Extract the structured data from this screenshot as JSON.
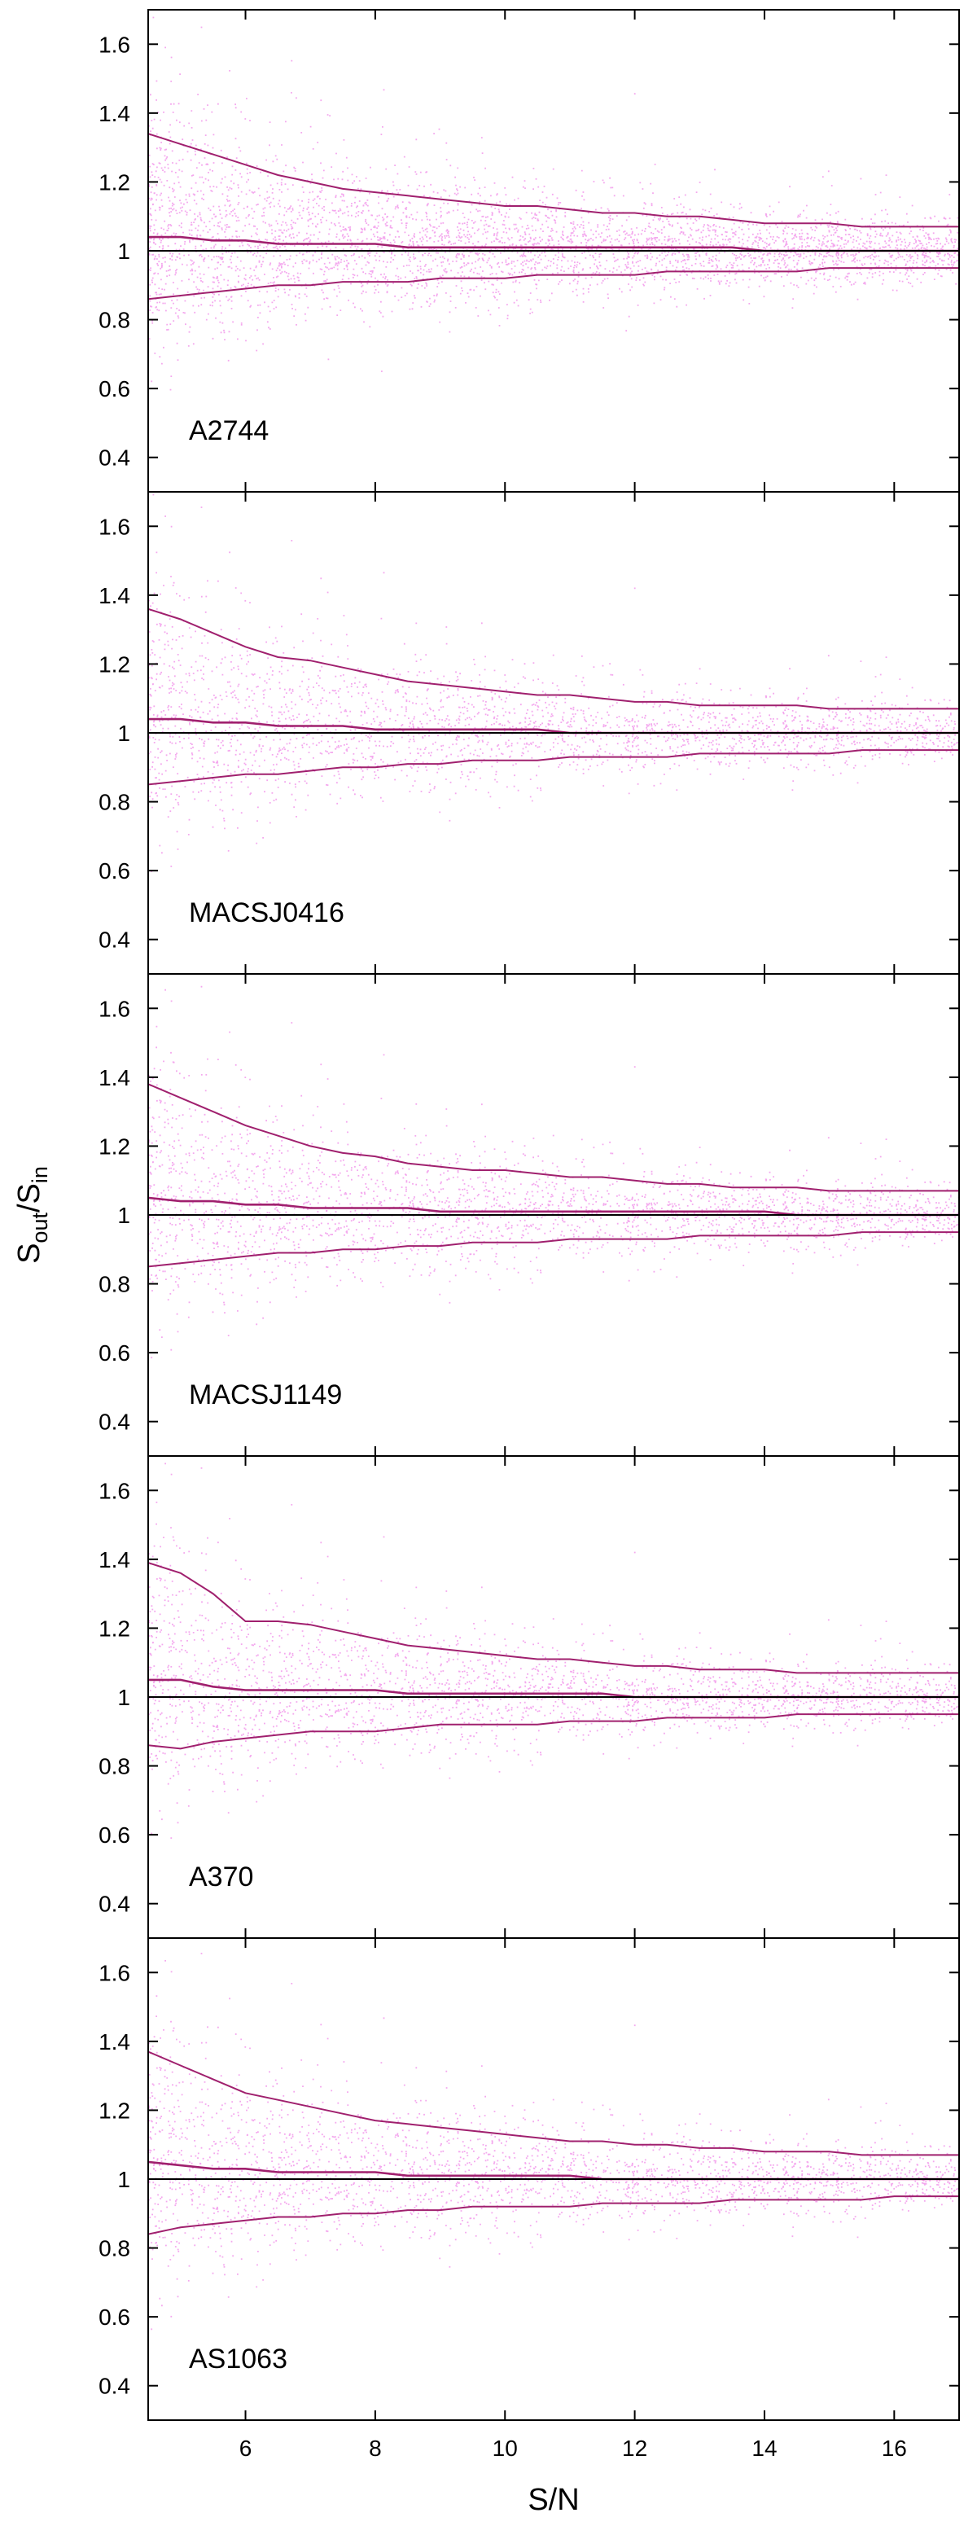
{
  "chart_data": {
    "type": "scatter",
    "xlabel": "S/N",
    "ylabel": {
      "main": "S",
      "sub_out": "out",
      "slash": "/",
      "sub_in": "in"
    },
    "xlim": [
      4.5,
      17
    ],
    "ylim": [
      0.3,
      1.7
    ],
    "xticks": [
      6,
      8,
      10,
      12,
      14,
      16
    ],
    "yticks": [
      0.4,
      0.6,
      0.8,
      1,
      1.2,
      1.4,
      1.6
    ],
    "xtick_labels": [
      "6",
      "8",
      "10",
      "12",
      "14",
      "16"
    ],
    "ytick_labels": [
      "0.4",
      "0.6",
      "0.8",
      "1",
      "1.2",
      "1.4",
      "1.6"
    ],
    "reference_line_y": 1,
    "grid": false,
    "legend": "none",
    "colors": {
      "points": "#f4a8ee",
      "curves": "#a0206e",
      "reference": "#000000"
    },
    "curve_x": [
      4.5,
      5,
      5.5,
      6,
      6.5,
      7,
      7.5,
      8,
      8.5,
      9,
      9.5,
      10,
      10.5,
      11,
      11.5,
      12,
      12.5,
      13,
      13.5,
      14,
      14.5,
      15,
      15.5,
      16,
      16.5,
      17
    ],
    "panels": [
      {
        "label": "A2744",
        "upper": [
          1.34,
          1.31,
          1.28,
          1.25,
          1.22,
          1.2,
          1.18,
          1.17,
          1.16,
          1.15,
          1.14,
          1.13,
          1.13,
          1.12,
          1.11,
          1.11,
          1.1,
          1.1,
          1.09,
          1.08,
          1.08,
          1.08,
          1.07,
          1.07,
          1.07,
          1.07
        ],
        "median": [
          1.04,
          1.04,
          1.03,
          1.03,
          1.02,
          1.02,
          1.02,
          1.02,
          1.01,
          1.01,
          1.01,
          1.01,
          1.01,
          1.01,
          1.01,
          1.01,
          1.01,
          1.01,
          1.01,
          1.0,
          1.0,
          1.0,
          1.0,
          1.0,
          1.0,
          1.0
        ],
        "lower": [
          0.86,
          0.87,
          0.88,
          0.89,
          0.9,
          0.9,
          0.91,
          0.91,
          0.91,
          0.92,
          0.92,
          0.92,
          0.93,
          0.93,
          0.93,
          0.93,
          0.94,
          0.94,
          0.94,
          0.94,
          0.94,
          0.95,
          0.95,
          0.95,
          0.95,
          0.95
        ]
      },
      {
        "label": "MACSJ0416",
        "upper": [
          1.36,
          1.33,
          1.29,
          1.25,
          1.22,
          1.21,
          1.19,
          1.17,
          1.15,
          1.14,
          1.13,
          1.12,
          1.11,
          1.11,
          1.1,
          1.09,
          1.09,
          1.08,
          1.08,
          1.08,
          1.08,
          1.07,
          1.07,
          1.07,
          1.07,
          1.07
        ],
        "median": [
          1.04,
          1.04,
          1.03,
          1.03,
          1.02,
          1.02,
          1.02,
          1.01,
          1.01,
          1.01,
          1.01,
          1.01,
          1.01,
          1.0,
          1.0,
          1.0,
          1.0,
          1.0,
          1.0,
          1.0,
          1.0,
          1.0,
          1.0,
          1.0,
          1.0,
          1.0
        ],
        "lower": [
          0.85,
          0.86,
          0.87,
          0.88,
          0.88,
          0.89,
          0.9,
          0.9,
          0.91,
          0.91,
          0.92,
          0.92,
          0.92,
          0.93,
          0.93,
          0.93,
          0.93,
          0.94,
          0.94,
          0.94,
          0.94,
          0.94,
          0.95,
          0.95,
          0.95,
          0.95
        ]
      },
      {
        "label": "MACSJ1149",
        "upper": [
          1.38,
          1.34,
          1.3,
          1.26,
          1.23,
          1.2,
          1.18,
          1.17,
          1.15,
          1.14,
          1.13,
          1.13,
          1.12,
          1.11,
          1.11,
          1.1,
          1.09,
          1.09,
          1.08,
          1.08,
          1.08,
          1.07,
          1.07,
          1.07,
          1.07,
          1.07
        ],
        "median": [
          1.05,
          1.04,
          1.04,
          1.03,
          1.03,
          1.02,
          1.02,
          1.02,
          1.02,
          1.01,
          1.01,
          1.01,
          1.01,
          1.01,
          1.01,
          1.01,
          1.01,
          1.01,
          1.01,
          1.01,
          1.0,
          1.0,
          1.0,
          1.0,
          1.0,
          1.0
        ],
        "lower": [
          0.85,
          0.86,
          0.87,
          0.88,
          0.89,
          0.89,
          0.9,
          0.9,
          0.91,
          0.91,
          0.92,
          0.92,
          0.92,
          0.93,
          0.93,
          0.93,
          0.93,
          0.94,
          0.94,
          0.94,
          0.94,
          0.94,
          0.95,
          0.95,
          0.95,
          0.95
        ]
      },
      {
        "label": "A370",
        "upper": [
          1.39,
          1.36,
          1.3,
          1.22,
          1.22,
          1.21,
          1.19,
          1.17,
          1.15,
          1.14,
          1.13,
          1.12,
          1.11,
          1.11,
          1.1,
          1.09,
          1.09,
          1.08,
          1.08,
          1.08,
          1.07,
          1.07,
          1.07,
          1.07,
          1.07,
          1.07
        ],
        "median": [
          1.05,
          1.05,
          1.03,
          1.02,
          1.02,
          1.02,
          1.02,
          1.02,
          1.01,
          1.01,
          1.01,
          1.01,
          1.01,
          1.01,
          1.01,
          1.0,
          1.0,
          1.0,
          1.0,
          1.0,
          1.0,
          1.0,
          1.0,
          1.0,
          1.0,
          1.0
        ],
        "lower": [
          0.86,
          0.85,
          0.87,
          0.88,
          0.89,
          0.9,
          0.9,
          0.9,
          0.91,
          0.92,
          0.92,
          0.92,
          0.92,
          0.93,
          0.93,
          0.93,
          0.94,
          0.94,
          0.94,
          0.94,
          0.95,
          0.95,
          0.95,
          0.95,
          0.95,
          0.95
        ]
      },
      {
        "label": "AS1063",
        "upper": [
          1.37,
          1.33,
          1.29,
          1.25,
          1.23,
          1.21,
          1.19,
          1.17,
          1.16,
          1.15,
          1.14,
          1.13,
          1.12,
          1.11,
          1.11,
          1.1,
          1.1,
          1.09,
          1.09,
          1.08,
          1.08,
          1.08,
          1.07,
          1.07,
          1.07,
          1.07
        ],
        "median": [
          1.05,
          1.04,
          1.03,
          1.03,
          1.02,
          1.02,
          1.02,
          1.02,
          1.01,
          1.01,
          1.01,
          1.01,
          1.01,
          1.01,
          1.0,
          1.0,
          1.0,
          1.0,
          1.0,
          1.0,
          1.0,
          1.0,
          1.0,
          1.0,
          1.0,
          1.0
        ],
        "lower": [
          0.84,
          0.86,
          0.87,
          0.88,
          0.89,
          0.89,
          0.9,
          0.9,
          0.91,
          0.91,
          0.92,
          0.92,
          0.92,
          0.92,
          0.93,
          0.93,
          0.93,
          0.93,
          0.94,
          0.94,
          0.94,
          0.94,
          0.94,
          0.95,
          0.95,
          0.95
        ]
      }
    ]
  }
}
